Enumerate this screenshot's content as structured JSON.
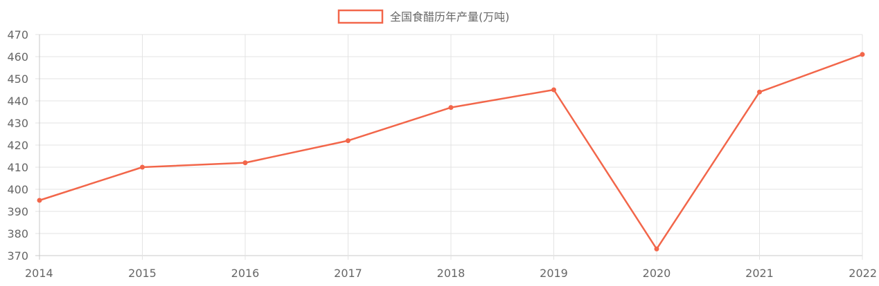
{
  "chart_data": {
    "type": "line",
    "x": [
      "2014",
      "2015",
      "2016",
      "2017",
      "2018",
      "2019",
      "2020",
      "2021",
      "2022"
    ],
    "series": [
      {
        "name": "全国食醋历年产量(万吨)",
        "values": [
          395,
          410,
          412,
          422,
          437,
          445,
          373,
          444,
          461
        ]
      }
    ],
    "ylim": [
      370,
      470
    ],
    "yticks": [
      "470",
      "460",
      "450",
      "440",
      "430",
      "420",
      "410",
      "400",
      "390",
      "380",
      "370"
    ],
    "grid": true,
    "legend_position": "top-center",
    "colors": {
      "series": "#f2664a",
      "grid": "#e3e3e3",
      "axis": "#c8c8c8",
      "text": "#666666"
    }
  }
}
